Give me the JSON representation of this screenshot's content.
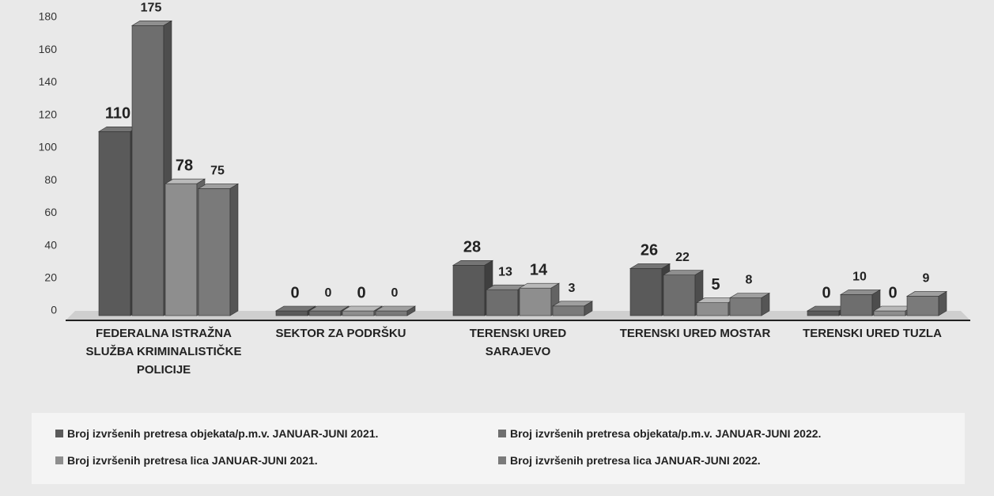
{
  "chart_data": {
    "type": "bar3d",
    "categories": [
      "FEDERALNA ISTRAŽNA SLUŽBA KRIMINALISTIČKE POLICIJE",
      "SEKTOR ZA PODRŠKU",
      "TERENSKI URED SARAJEVO",
      "TERENSKI URED MOSTAR",
      "TERENSKI URED TUZLA"
    ],
    "series": [
      {
        "name": "Broj izvršenih pretresa objekata/p.m.v. JANUAR-JUNI 2021.",
        "color": "#5a5a5a",
        "values": [
          110,
          0,
          28,
          26,
          0
        ]
      },
      {
        "name": "Broj izvršenih pretresa objekata/p.m.v. JANUAR-JUNI  2022.",
        "color": "#6e6e6e",
        "values": [
          175,
          0,
          13,
          22,
          10
        ]
      },
      {
        "name": "Broj izvršenih pretresa lica JANUAR-JUNI 2021.",
        "color": "#8e8e8e",
        "values": [
          78,
          0,
          14,
          5,
          0
        ]
      },
      {
        "name": "Broj izvršenih pretresa lica JANUAR-JUNI  2022.",
        "color": "#7a7a7a",
        "values": [
          75,
          0,
          3,
          8,
          9
        ]
      }
    ],
    "ylim": [
      0,
      180
    ],
    "yticks": [
      0,
      20,
      40,
      60,
      80,
      100,
      120,
      140,
      160,
      180
    ]
  }
}
